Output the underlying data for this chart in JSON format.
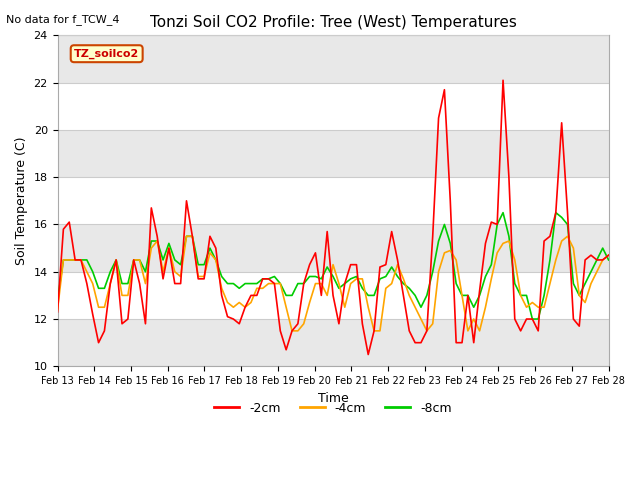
{
  "title": "Tonzi Soil CO2 Profile: Tree (West) Temperatures",
  "no_data_note": "No data for f_TCW_4",
  "xlabel": "Time",
  "ylabel": "Soil Temperature (C)",
  "ylim": [
    10,
    24
  ],
  "yticks": [
    10,
    12,
    14,
    16,
    18,
    20,
    22,
    24
  ],
  "xtick_labels": [
    "Feb 13",
    "Feb 14",
    "Feb 15",
    "Feb 16",
    "Feb 17",
    "Feb 18",
    "Feb 19",
    "Feb 20",
    "Feb 21",
    "Feb 22",
    "Feb 23",
    "Feb 24",
    "Feb 25",
    "Feb 26",
    "Feb 27",
    "Feb 28"
  ],
  "legend_labels": [
    "-2cm",
    "-4cm",
    "-8cm"
  ],
  "legend_colors": [
    "#ff0000",
    "#ffa500",
    "#00cc00"
  ],
  "box_label": "TZ_soilco2",
  "box_facecolor": "#ffffcc",
  "box_edgecolor": "#cc4400",
  "box_textcolor": "#cc0000",
  "background_color": "#ffffff",
  "plot_bg_color": "#e8e8e8",
  "band_color": "#e8e8e8",
  "white_color": "#ffffff",
  "grid_color": "#cccccc",
  "line_width": 1.2,
  "t_2cm": [
    12.3,
    15.8,
    16.1,
    14.5,
    14.5,
    13.5,
    12.2,
    11.0,
    11.5,
    13.5,
    14.5,
    11.8,
    12.0,
    14.5,
    13.5,
    11.8,
    16.7,
    15.5,
    13.7,
    15.0,
    13.5,
    13.5,
    17.0,
    15.5,
    13.7,
    13.7,
    15.5,
    15.0,
    13.0,
    12.1,
    12.0,
    11.8,
    12.5,
    13.0,
    13.0,
    13.7,
    13.7,
    13.5,
    11.5,
    10.7,
    11.5,
    11.8,
    13.5,
    14.3,
    14.8,
    13.0,
    15.7,
    13.0,
    11.8,
    13.5,
    14.3,
    14.3,
    11.8,
    10.5,
    11.5,
    14.2,
    14.3,
    15.7,
    14.5,
    13.0,
    11.5,
    11.0,
    11.0,
    11.5,
    15.5,
    20.5,
    21.7,
    17.0,
    11.0,
    11.0,
    13.0,
    11.0,
    13.2,
    15.2,
    16.1,
    16.0,
    22.1,
    18.0,
    12.0,
    11.5,
    12.0,
    12.0,
    11.5,
    15.3,
    15.5,
    16.5,
    20.3,
    16.5,
    12.0,
    11.7,
    14.5,
    14.7,
    14.5,
    14.5,
    14.7
  ],
  "t_4cm": [
    12.4,
    14.5,
    14.5,
    14.5,
    14.5,
    14.0,
    13.5,
    12.5,
    12.5,
    13.5,
    14.5,
    13.0,
    13.0,
    14.5,
    14.5,
    13.5,
    15.0,
    15.3,
    14.0,
    15.0,
    14.0,
    13.8,
    15.5,
    15.5,
    13.8,
    13.8,
    14.8,
    14.5,
    13.3,
    12.7,
    12.5,
    12.7,
    12.5,
    12.7,
    13.3,
    13.3,
    13.5,
    13.5,
    13.5,
    12.5,
    11.5,
    11.5,
    11.8,
    12.7,
    13.5,
    13.5,
    13.0,
    14.3,
    13.5,
    12.5,
    13.5,
    13.7,
    13.7,
    12.5,
    11.5,
    11.5,
    13.3,
    13.5,
    14.3,
    13.7,
    13.0,
    12.5,
    12.0,
    11.5,
    11.8,
    14.0,
    14.8,
    14.9,
    14.5,
    13.0,
    11.5,
    12.0,
    11.5,
    12.5,
    13.7,
    14.8,
    15.2,
    15.3,
    14.5,
    13.0,
    12.5,
    12.7,
    12.5,
    12.5,
    13.5,
    14.5,
    15.3,
    15.5,
    15.0,
    13.0,
    12.7,
    13.5,
    14.0,
    14.5,
    14.7
  ],
  "t_8cm": [
    12.8,
    14.5,
    14.5,
    14.5,
    14.5,
    14.5,
    14.0,
    13.3,
    13.3,
    14.0,
    14.5,
    13.5,
    13.5,
    14.5,
    14.5,
    14.0,
    15.3,
    15.3,
    14.5,
    15.2,
    14.5,
    14.3,
    15.5,
    15.5,
    14.3,
    14.3,
    15.0,
    14.5,
    13.8,
    13.5,
    13.5,
    13.3,
    13.5,
    13.5,
    13.5,
    13.7,
    13.7,
    13.8,
    13.5,
    13.0,
    13.0,
    13.5,
    13.5,
    13.8,
    13.8,
    13.7,
    14.2,
    13.8,
    13.3,
    13.5,
    13.7,
    13.8,
    13.3,
    13.0,
    13.0,
    13.7,
    13.8,
    14.2,
    13.8,
    13.5,
    13.3,
    13.0,
    12.5,
    13.0,
    14.0,
    15.3,
    16.0,
    15.2,
    13.5,
    13.0,
    13.0,
    12.5,
    13.0,
    13.8,
    14.3,
    16.0,
    16.5,
    15.5,
    13.5,
    13.0,
    13.0,
    12.0,
    12.0,
    13.0,
    14.5,
    16.5,
    16.3,
    16.0,
    13.5,
    13.0,
    13.5,
    14.0,
    14.5,
    15.0,
    14.5
  ]
}
